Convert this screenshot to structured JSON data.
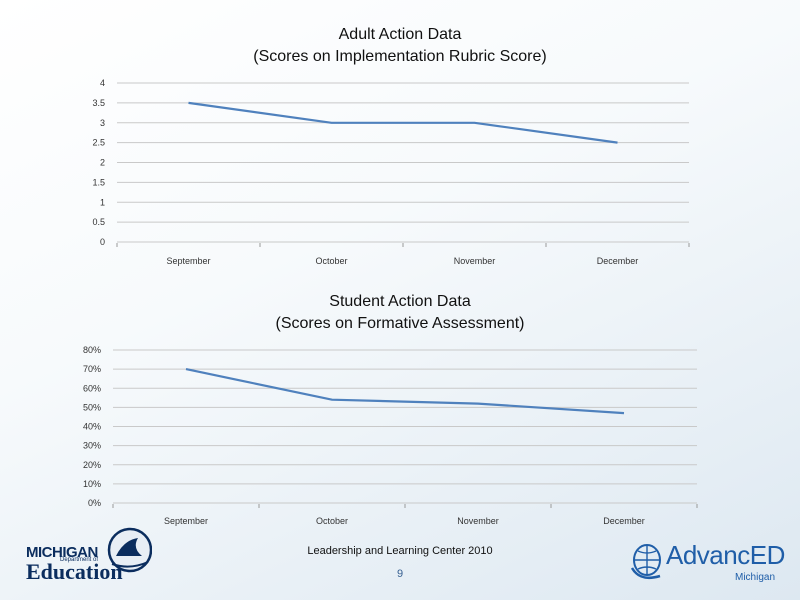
{
  "chart_data": [
    {
      "type": "line",
      "title": "Adult Action Data",
      "subtitle": "(Scores on Implementation Rubric Score)",
      "categories": [
        "September",
        "October",
        "November",
        "December"
      ],
      "series": [
        {
          "name": "Rubric Score",
          "values": [
            3.5,
            3.0,
            3.0,
            2.5
          ]
        }
      ],
      "yticks": [
        "0",
        "0.5",
        "1",
        "1.5",
        "2",
        "2.5",
        "3",
        "3.5",
        "4"
      ],
      "ylim": [
        0,
        4
      ],
      "grid": true,
      "color": "#4f81bd"
    },
    {
      "type": "line",
      "title": "Student Action Data",
      "subtitle": "(Scores on Formative Assessment)",
      "categories": [
        "September",
        "October",
        "November",
        "December"
      ],
      "series": [
        {
          "name": "Formative Assessment",
          "values": [
            70,
            54,
            52,
            47
          ]
        }
      ],
      "yticks": [
        "0%",
        "10%",
        "20%",
        "30%",
        "40%",
        "50%",
        "60%",
        "70%",
        "80%"
      ],
      "ylim": [
        0,
        80
      ],
      "grid": true,
      "color": "#4f81bd"
    }
  ],
  "footer": {
    "text": "Leadership and Learning Center 2010",
    "page": "9"
  },
  "logos": {
    "michigan": {
      "line1": "MICHIGAN",
      "line2": "Department of",
      "line3": "Education"
    },
    "advanced": {
      "name": "AdvancED",
      "region": "Michigan"
    }
  }
}
